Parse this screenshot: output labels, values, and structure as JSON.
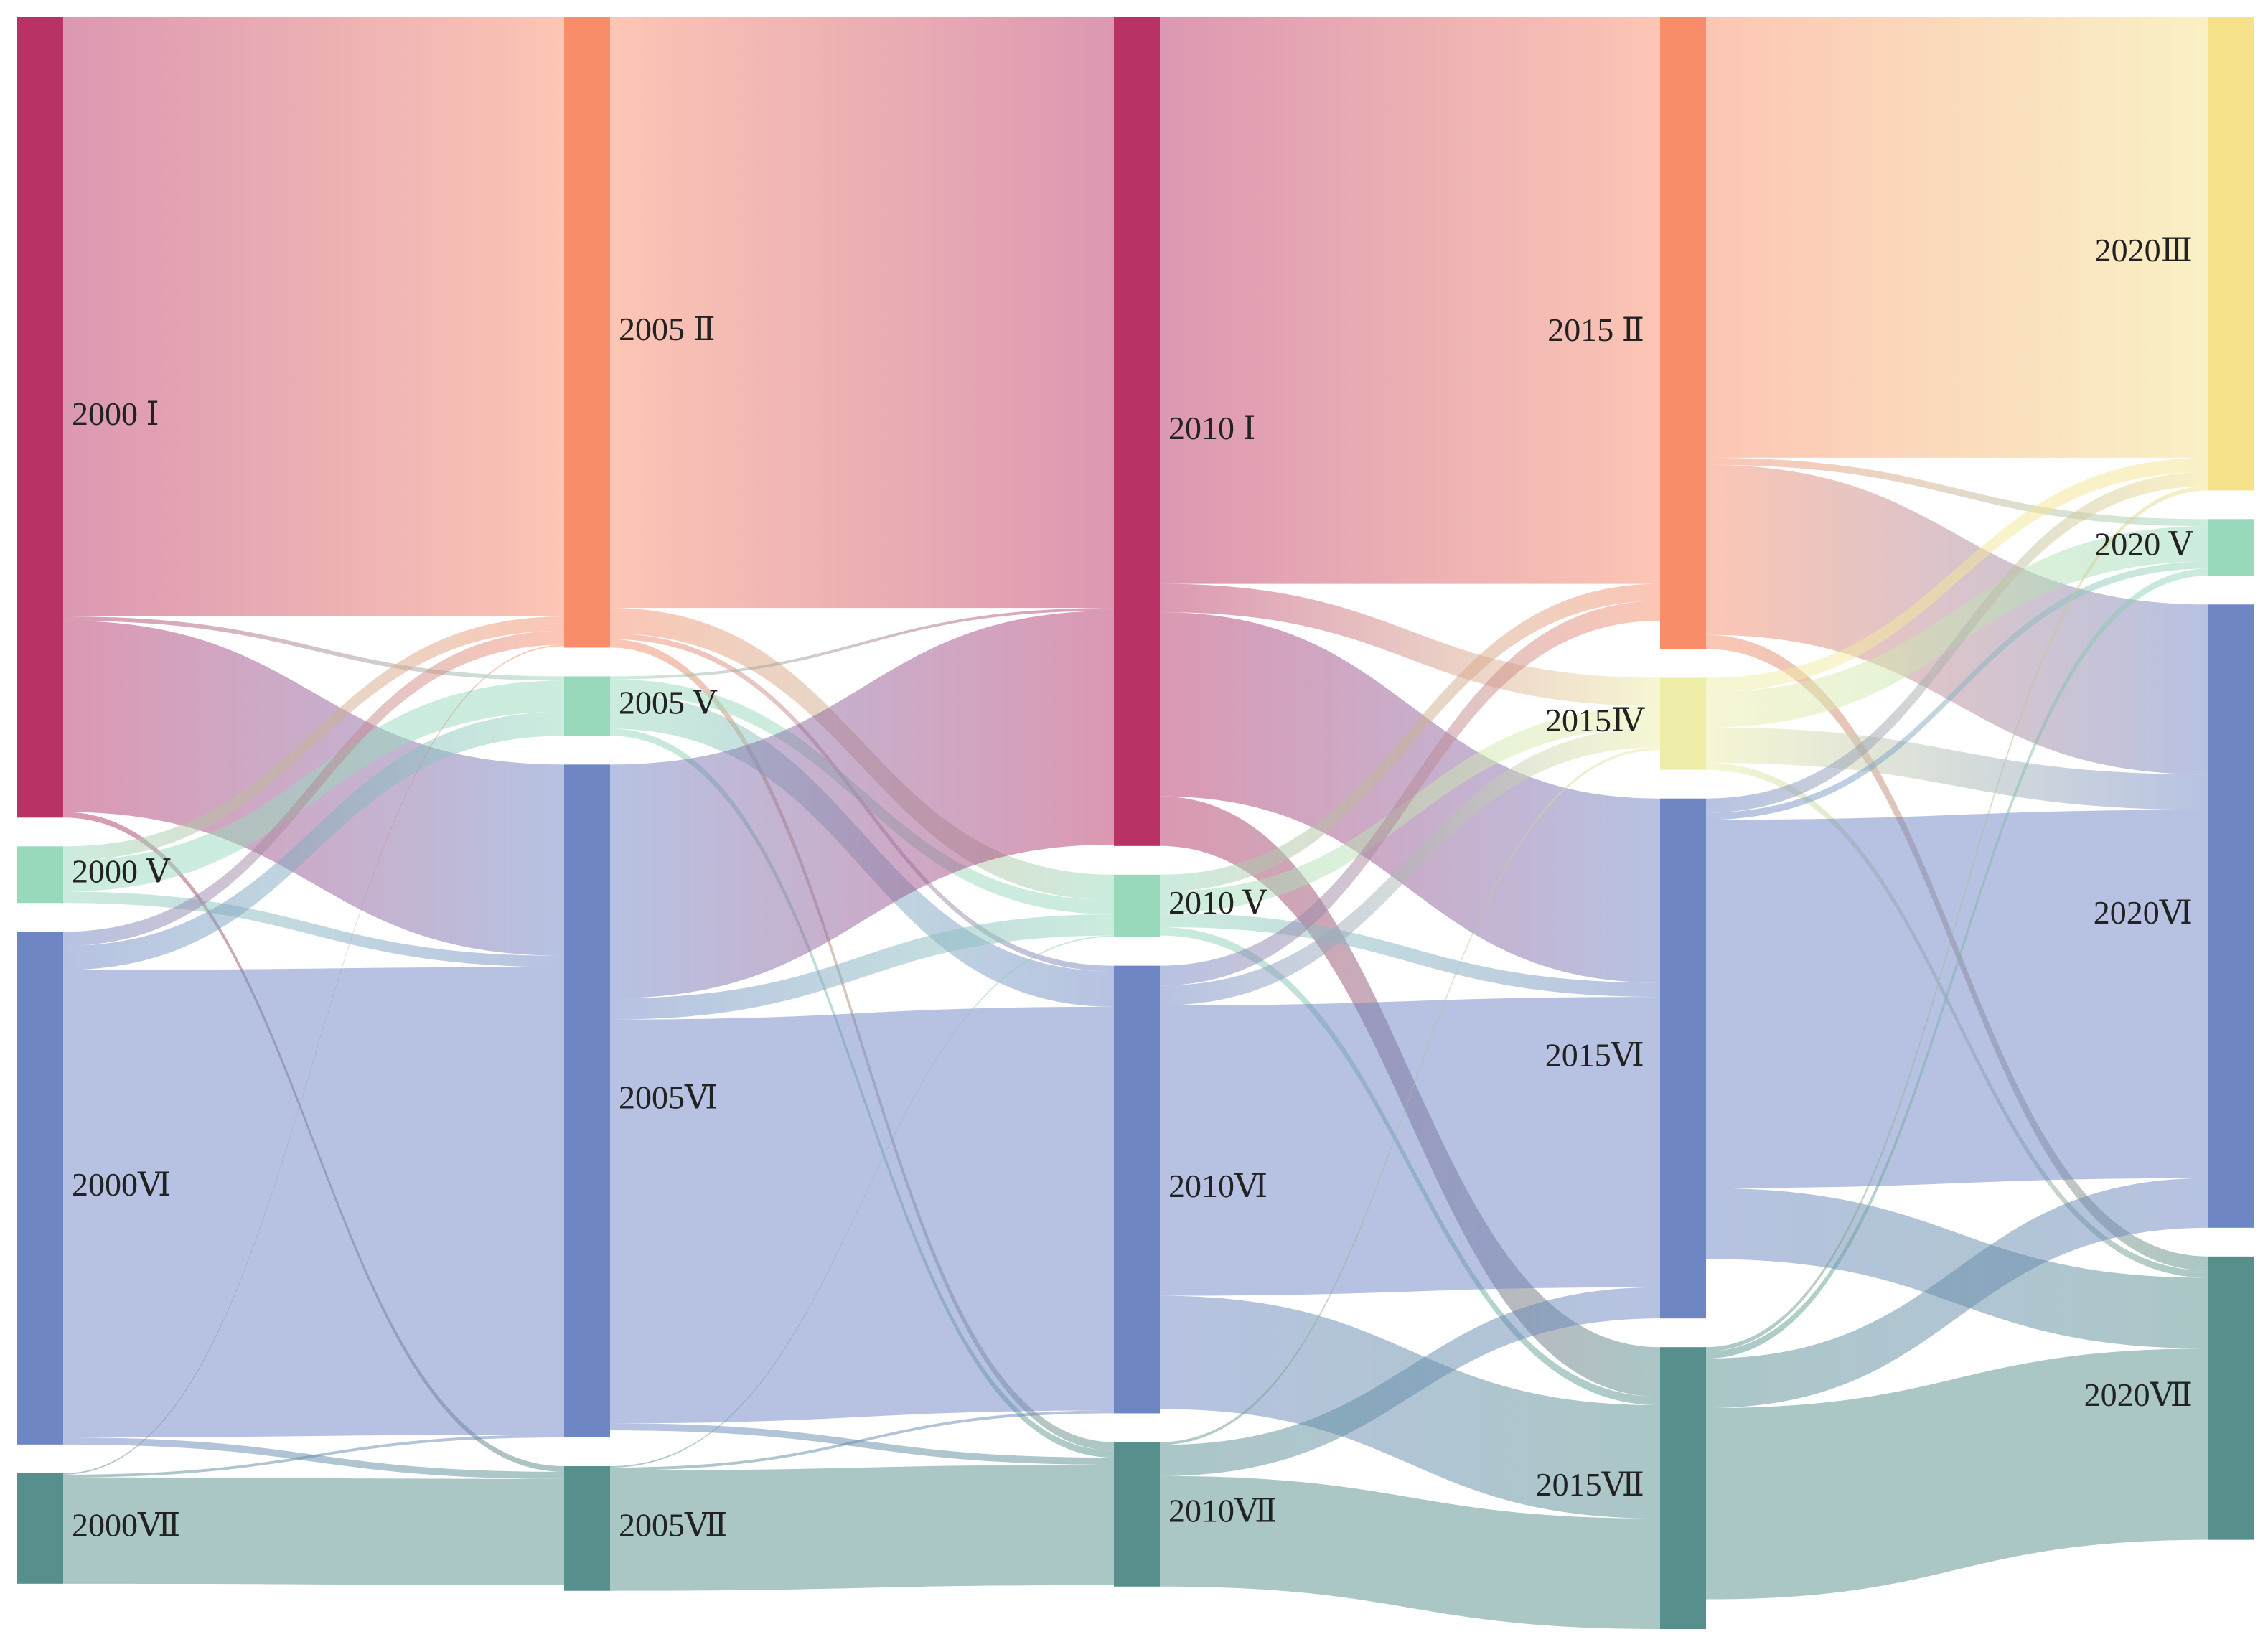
{
  "chart_data": {
    "type": "sankey",
    "columns": [
      {
        "nodes": [
          {
            "label": "2000 Ⅰ",
            "color": "#b83266"
          },
          {
            "label": "2000 Ⅴ",
            "color": "#98d9bc"
          },
          {
            "label": "2000Ⅵ",
            "color": "#6f86c5"
          },
          {
            "label": "2000Ⅶ",
            "color": "#568f8c"
          }
        ]
      },
      {
        "nodes": [
          {
            "label": "2005 Ⅱ",
            "color": "#f98d6a"
          },
          {
            "label": "2005 Ⅴ",
            "color": "#98d9bc"
          },
          {
            "label": "2005Ⅵ",
            "color": "#6f86c5"
          },
          {
            "label": "2005Ⅶ",
            "color": "#568f8c"
          }
        ]
      },
      {
        "nodes": [
          {
            "label": "2010 Ⅰ",
            "color": "#b83266"
          },
          {
            "label": "2010 Ⅴ",
            "color": "#98d9bc"
          },
          {
            "label": "2010Ⅵ",
            "color": "#6f86c5"
          },
          {
            "label": "2010Ⅶ",
            "color": "#568f8c"
          }
        ]
      },
      {
        "nodes": [
          {
            "label": "2015 Ⅱ",
            "color": "#f98d6a"
          },
          {
            "label": "2015Ⅳ",
            "color": "#eeeea8"
          },
          {
            "label": "2015Ⅵ",
            "color": "#6f86c5"
          },
          {
            "label": "2015Ⅶ",
            "color": "#568f8c"
          }
        ]
      },
      {
        "nodes": [
          {
            "label": "2020Ⅲ",
            "color": "#f5e28b"
          },
          {
            "label": "2020 Ⅴ",
            "color": "#98d9bc"
          },
          {
            "label": "2020Ⅵ",
            "color": "#6f86c5"
          },
          {
            "label": "2020Ⅶ",
            "color": "#568f8c"
          }
        ]
      }
    ],
    "links": [
      {
        "source": "2000 Ⅰ",
        "target": "2005 Ⅱ",
        "value": 423
      },
      {
        "source": "2000 Ⅰ",
        "target": "2005 Ⅴ",
        "value": 3
      },
      {
        "source": "2000 Ⅰ",
        "target": "2005Ⅵ",
        "value": 135
      },
      {
        "source": "2000 Ⅰ",
        "target": "2005Ⅶ",
        "value": 4
      },
      {
        "source": "2000 Ⅴ",
        "target": "2005 Ⅱ",
        "value": 10
      },
      {
        "source": "2000 Ⅴ",
        "target": "2005 Ⅴ",
        "value": 22
      },
      {
        "source": "2000 Ⅴ",
        "target": "2005Ⅵ",
        "value": 8
      },
      {
        "source": "2000Ⅵ",
        "target": "2005 Ⅱ",
        "value": 10
      },
      {
        "source": "2000Ⅵ",
        "target": "2005 Ⅴ",
        "value": 17
      },
      {
        "source": "2000Ⅵ",
        "target": "2005Ⅵ",
        "value": 330
      },
      {
        "source": "2000Ⅵ",
        "target": "2005Ⅶ",
        "value": 5
      },
      {
        "source": "2000Ⅶ",
        "target": "2005 Ⅱ",
        "value": 1
      },
      {
        "source": "2000Ⅶ",
        "target": "2005Ⅵ",
        "value": 2
      },
      {
        "source": "2000Ⅶ",
        "target": "2005Ⅶ",
        "value": 75
      },
      {
        "source": "2005 Ⅱ",
        "target": "2010 Ⅰ",
        "value": 417
      },
      {
        "source": "2005 Ⅱ",
        "target": "2010 Ⅴ",
        "value": 18
      },
      {
        "source": "2005 Ⅱ",
        "target": "2010Ⅵ",
        "value": 4
      },
      {
        "source": "2005 Ⅱ",
        "target": "2010Ⅶ",
        "value": 6
      },
      {
        "source": "2005 Ⅴ",
        "target": "2010 Ⅰ",
        "value": 2
      },
      {
        "source": "2005 Ⅴ",
        "target": "2010 Ⅴ",
        "value": 10
      },
      {
        "source": "2005 Ⅴ",
        "target": "2010Ⅵ",
        "value": 25
      },
      {
        "source": "2005 Ⅴ",
        "target": "2010Ⅶ",
        "value": 5
      },
      {
        "source": "2005Ⅵ",
        "target": "2010 Ⅰ",
        "value": 165
      },
      {
        "source": "2005Ⅵ",
        "target": "2010 Ⅴ",
        "value": 15
      },
      {
        "source": "2005Ⅵ",
        "target": "2010Ⅵ",
        "value": 285
      },
      {
        "source": "2005Ⅵ",
        "target": "2010Ⅶ",
        "value": 5
      },
      {
        "source": "2005Ⅶ",
        "target": "2010 Ⅴ",
        "value": 1
      },
      {
        "source": "2005Ⅶ",
        "target": "2010Ⅵ",
        "value": 2
      },
      {
        "source": "2005Ⅶ",
        "target": "2010Ⅶ",
        "value": 85
      },
      {
        "source": "2010 Ⅰ",
        "target": "2015 Ⅱ",
        "value": 400
      },
      {
        "source": "2010 Ⅰ",
        "target": "2015Ⅳ",
        "value": 20
      },
      {
        "source": "2010 Ⅰ",
        "target": "2015Ⅵ",
        "value": 130
      },
      {
        "source": "2010 Ⅰ",
        "target": "2015Ⅶ",
        "value": 35
      },
      {
        "source": "2010 Ⅴ",
        "target": "2015 Ⅱ",
        "value": 12
      },
      {
        "source": "2010 Ⅴ",
        "target": "2015Ⅳ",
        "value": 15
      },
      {
        "source": "2010 Ⅴ",
        "target": "2015Ⅵ",
        "value": 10
      },
      {
        "source": "2010 Ⅴ",
        "target": "2015Ⅶ",
        "value": 6
      },
      {
        "source": "2010Ⅵ",
        "target": "2015 Ⅱ",
        "value": 14
      },
      {
        "source": "2010Ⅵ",
        "target": "2015Ⅳ",
        "value": 14
      },
      {
        "source": "2010Ⅵ",
        "target": "2015Ⅵ",
        "value": 205
      },
      {
        "source": "2010Ⅵ",
        "target": "2015Ⅶ",
        "value": 80
      },
      {
        "source": "2010Ⅶ",
        "target": "2015Ⅳ",
        "value": 2
      },
      {
        "source": "2010Ⅶ",
        "target": "2015Ⅵ",
        "value": 22
      },
      {
        "source": "2010Ⅶ",
        "target": "2015Ⅶ",
        "value": 78
      },
      {
        "source": "2015 Ⅱ",
        "target": "2020Ⅲ",
        "value": 311
      },
      {
        "source": "2015 Ⅱ",
        "target": "2020 Ⅴ",
        "value": 5
      },
      {
        "source": "2015 Ⅱ",
        "target": "2020Ⅵ",
        "value": 120
      },
      {
        "source": "2015 Ⅱ",
        "target": "2020Ⅶ",
        "value": 10
      },
      {
        "source": "2015Ⅳ",
        "target": "2020Ⅲ",
        "value": 10
      },
      {
        "source": "2015Ⅳ",
        "target": "2020 Ⅴ",
        "value": 25
      },
      {
        "source": "2015Ⅳ",
        "target": "2020Ⅵ",
        "value": 25
      },
      {
        "source": "2015Ⅳ",
        "target": "2020Ⅶ",
        "value": 5
      },
      {
        "source": "2015Ⅵ",
        "target": "2020Ⅲ",
        "value": 10
      },
      {
        "source": "2015Ⅵ",
        "target": "2020 Ⅴ",
        "value": 5
      },
      {
        "source": "2015Ⅵ",
        "target": "2020Ⅵ",
        "value": 260
      },
      {
        "source": "2015Ⅵ",
        "target": "2020Ⅶ",
        "value": 50
      },
      {
        "source": "2015Ⅶ",
        "target": "2020Ⅲ",
        "value": 3
      },
      {
        "source": "2015Ⅶ",
        "target": "2020 Ⅴ",
        "value": 5
      },
      {
        "source": "2015Ⅶ",
        "target": "2020Ⅵ",
        "value": 35
      },
      {
        "source": "2015Ⅶ",
        "target": "2020Ⅶ",
        "value": 135
      }
    ]
  }
}
